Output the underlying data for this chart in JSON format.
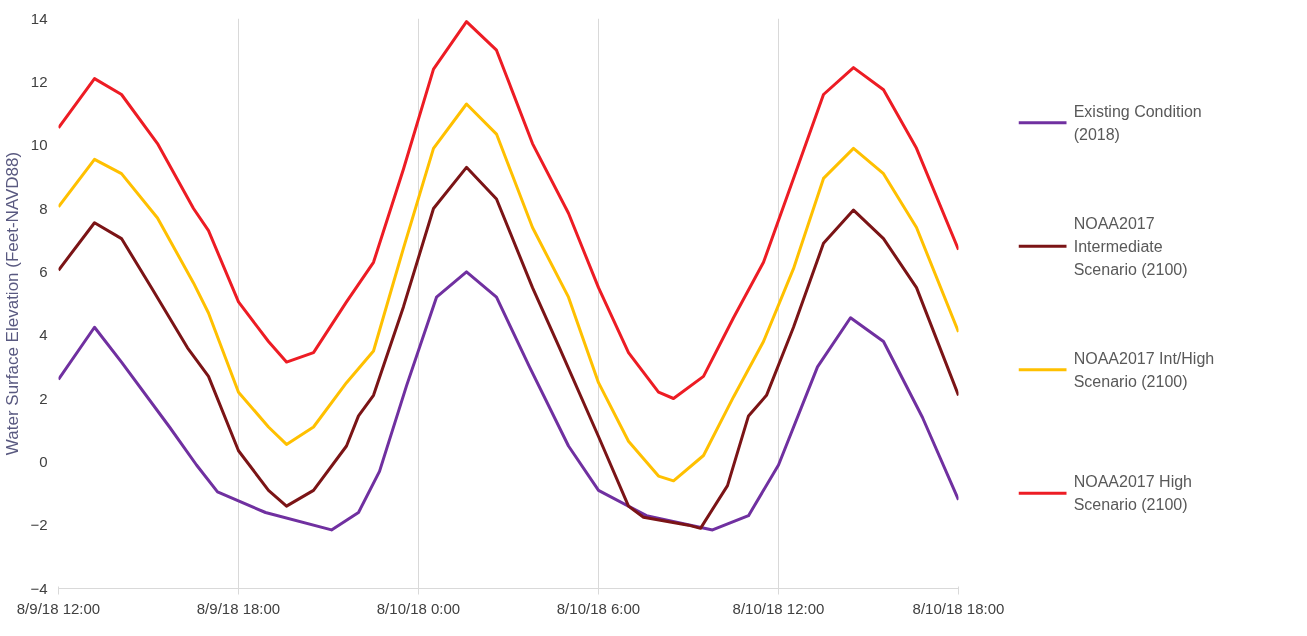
{
  "chart_data": {
    "type": "line",
    "ylabel": "Water Surface Elevation (Feet-NAVD88)",
    "xlim": [
      "2018-08-09T12:00",
      "2018-08-10T18:00"
    ],
    "ylim": [
      -4,
      14
    ],
    "xticks": [
      {
        "value": "2018-08-09T12:00",
        "label": "8/9/18 12:00"
      },
      {
        "value": "2018-08-09T18:00",
        "label": "8/9/18 18:00"
      },
      {
        "value": "2018-08-10T00:00",
        "label": "8/10/18 0:00"
      },
      {
        "value": "2018-08-10T06:00",
        "label": "8/10/18 6:00"
      },
      {
        "value": "2018-08-10T12:00",
        "label": "8/10/18 12:00"
      },
      {
        "value": "2018-08-10T18:00",
        "label": "8/10/18 18:00"
      }
    ],
    "yticks": [
      -4,
      -2,
      0,
      2,
      4,
      6,
      8,
      10,
      12,
      14
    ],
    "grid": "x",
    "legend": "right",
    "line_style": "solid",
    "series": [
      {
        "name": "Existing Condition (2018)",
        "color": "#7030a0",
        "x": [
          "2018-08-09T12:00",
          "2018-08-09T13:12",
          "2018-08-09T14:06",
          "2018-08-09T15:42",
          "2018-08-09T16:36",
          "2018-08-09T17:18",
          "2018-08-09T18:54",
          "2018-08-09T21:06",
          "2018-08-09T22:00",
          "2018-08-09T22:42",
          "2018-08-09T23:36",
          "2018-08-10T00:36",
          "2018-08-10T01:36",
          "2018-08-10T02:36",
          "2018-08-10T03:42",
          "2018-08-10T05:00",
          "2018-08-10T06:00",
          "2018-08-10T07:36",
          "2018-08-10T09:48",
          "2018-08-10T11:00",
          "2018-08-10T12:00",
          "2018-08-10T13:18",
          "2018-08-10T14:24",
          "2018-08-10T15:30",
          "2018-08-10T16:48",
          "2018-08-10T18:00"
        ],
        "values": [
          2.6,
          4.25,
          3.15,
          1.1,
          -0.1,
          -0.95,
          -1.6,
          -2.15,
          -1.6,
          -0.3,
          2.4,
          5.2,
          6.0,
          5.2,
          3.0,
          0.5,
          -0.9,
          -1.7,
          -2.15,
          -1.7,
          -0.1,
          3.0,
          4.55,
          3.8,
          1.4,
          -1.2
        ]
      },
      {
        "name": "NOAA2017 Intermediate Scenario (2100)",
        "color": "#7b1416",
        "x": [
          "2018-08-09T12:00",
          "2018-08-09T13:12",
          "2018-08-09T14:06",
          "2018-08-09T15:06",
          "2018-08-09T16:18",
          "2018-08-09T17:00",
          "2018-08-09T18:00",
          "2018-08-09T19:00",
          "2018-08-09T19:36",
          "2018-08-09T20:30",
          "2018-08-09T21:36",
          "2018-08-09T22:00",
          "2018-08-09T22:30",
          "2018-08-09T23:30",
          "2018-08-10T00:30",
          "2018-08-10T01:36",
          "2018-08-10T02:36",
          "2018-08-10T03:48",
          "2018-08-10T04:42",
          "2018-08-10T06:00",
          "2018-08-10T07:00",
          "2018-08-10T07:30",
          "2018-08-10T09:00",
          "2018-08-10T09:24",
          "2018-08-10T10:18",
          "2018-08-10T11:00",
          "2018-08-10T11:36",
          "2018-08-10T12:30",
          "2018-08-10T13:30",
          "2018-08-10T14:30",
          "2018-08-10T15:30",
          "2018-08-10T16:36",
          "2018-08-10T18:00"
        ],
        "values": [
          6.05,
          7.55,
          7.05,
          5.5,
          3.6,
          2.7,
          0.35,
          -0.9,
          -1.4,
          -0.9,
          0.5,
          1.45,
          2.1,
          4.9,
          8.0,
          9.3,
          8.3,
          5.5,
          3.6,
          0.8,
          -1.4,
          -1.75,
          -2.0,
          -2.1,
          -0.75,
          1.45,
          2.1,
          4.25,
          6.9,
          7.95,
          7.05,
          5.5,
          2.1
        ]
      },
      {
        "name": "NOAA2017 Int/High Scenario (2100)",
        "color": "#ffc000",
        "x": [
          "2018-08-09T12:00",
          "2018-08-09T13:12",
          "2018-08-09T14:06",
          "2018-08-09T15:18",
          "2018-08-09T16:30",
          "2018-08-09T17:00",
          "2018-08-09T18:00",
          "2018-08-09T19:00",
          "2018-08-09T19:36",
          "2018-08-09T20:30",
          "2018-08-09T21:36",
          "2018-08-09T22:30",
          "2018-08-09T23:30",
          "2018-08-10T00:30",
          "2018-08-10T01:36",
          "2018-08-10T02:36",
          "2018-08-10T03:48",
          "2018-08-10T05:00",
          "2018-08-10T06:00",
          "2018-08-10T07:00",
          "2018-08-10T08:00",
          "2018-08-10T08:30",
          "2018-08-10T09:30",
          "2018-08-10T10:30",
          "2018-08-10T11:30",
          "2018-08-10T12:30",
          "2018-08-10T13:30",
          "2018-08-10T14:30",
          "2018-08-10T15:30",
          "2018-08-10T16:36",
          "2018-08-10T18:00"
        ],
        "values": [
          8.05,
          9.55,
          9.1,
          7.7,
          5.65,
          4.7,
          2.2,
          1.1,
          0.55,
          1.1,
          2.5,
          3.5,
          6.75,
          9.9,
          11.3,
          10.35,
          7.4,
          5.2,
          2.5,
          0.65,
          -0.45,
          -0.6,
          0.2,
          2.05,
          3.8,
          6.1,
          8.95,
          9.9,
          9.1,
          7.4,
          4.1
        ]
      },
      {
        "name": "NOAA2017 High Scenario (2100)",
        "color": "#ed1c24",
        "x": [
          "2018-08-09T12:00",
          "2018-08-09T13:12",
          "2018-08-09T14:06",
          "2018-08-09T15:18",
          "2018-08-09T16:30",
          "2018-08-09T17:00",
          "2018-08-09T18:00",
          "2018-08-09T19:00",
          "2018-08-09T19:36",
          "2018-08-09T20:30",
          "2018-08-09T21:36",
          "2018-08-09T22:30",
          "2018-08-09T23:30",
          "2018-08-10T00:30",
          "2018-08-10T01:36",
          "2018-08-10T02:36",
          "2018-08-10T03:48",
          "2018-08-10T05:00",
          "2018-08-10T06:00",
          "2018-08-10T07:00",
          "2018-08-10T08:00",
          "2018-08-10T08:30",
          "2018-08-10T09:30",
          "2018-08-10T10:30",
          "2018-08-10T11:30",
          "2018-08-10T12:30",
          "2018-08-10T13:30",
          "2018-08-10T14:30",
          "2018-08-10T15:30",
          "2018-08-10T16:36",
          "2018-08-10T18:00"
        ],
        "values": [
          10.55,
          12.1,
          11.6,
          10.05,
          8.0,
          7.3,
          5.05,
          3.8,
          3.15,
          3.45,
          5.05,
          6.3,
          9.25,
          12.4,
          13.9,
          13.0,
          10.05,
          7.85,
          5.5,
          3.45,
          2.2,
          2.0,
          2.7,
          4.55,
          6.3,
          8.95,
          11.6,
          12.45,
          11.75,
          9.9,
          6.7
        ]
      }
    ]
  }
}
